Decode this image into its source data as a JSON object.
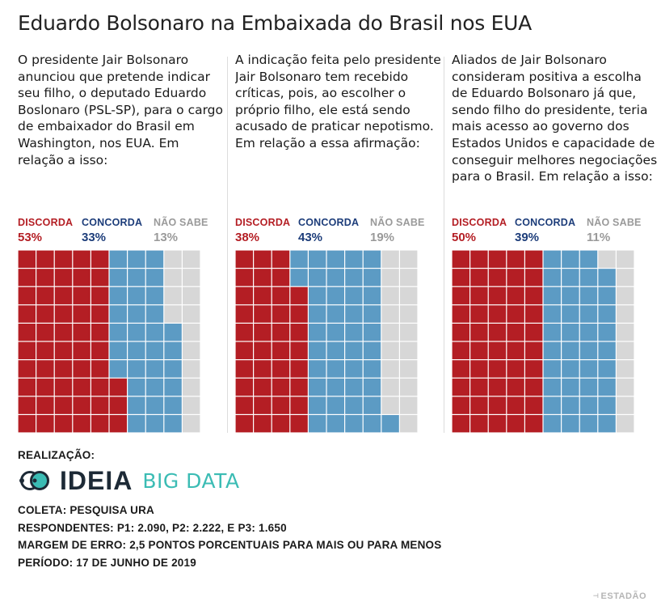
{
  "title": "Eduardo Bolsonaro na Embaixada do Brasil nos EUA",
  "colors": {
    "discorda": "#b41e24",
    "concorda": "#5c9bc4",
    "nao_sabe": "#d7d7d7",
    "discorda_text": "#b41e24",
    "concorda_text": "#1d3d7a",
    "nao_sabe_text": "#9a9a9a"
  },
  "questions": [
    "O presidente Jair Bolsonaro anunciou que pretende indicar seu filho, o deputado Eduardo Boslonaro (PSL-SP), para o cargo de embaixador do Brasil em Washington, nos EUA. Em relação a isso:",
    "A indicação feita pelo presidente Jair Bolsonaro tem recebido críticas, pois, ao escolher o próprio filho, ele está sendo acusado de praticar nepotismo. Em relação a essa afirmação:",
    "Aliados de Jair Bolsonaro consideram positiva a escolha de Eduardo Bolsonaro já que, sendo filho do presidente, teria mais acesso ao governo dos Estados Unidos e capacidade de conseguir melhores negociações para o Brasil. Em relação a isso:"
  ],
  "chart_data": [
    {
      "type": "waffle",
      "question_index": 0,
      "categories": [
        "DISCORDA",
        "CONCORDA",
        "NÃO SABE"
      ],
      "percent_labels": [
        "53%",
        "33%",
        "13%"
      ],
      "values": [
        53,
        33,
        13
      ],
      "total_cells": 100
    },
    {
      "type": "waffle",
      "question_index": 1,
      "categories": [
        "DISCORDA",
        "CONCORDA",
        "NÃO SABE"
      ],
      "percent_labels": [
        "38%",
        "43%",
        "19%"
      ],
      "values": [
        38,
        43,
        19
      ],
      "total_cells": 100
    },
    {
      "type": "waffle",
      "question_index": 2,
      "categories": [
        "DISCORDA",
        "CONCORDA",
        "NÃO SABE"
      ],
      "percent_labels": [
        "50%",
        "39%",
        "11%"
      ],
      "values": [
        50,
        39,
        11
      ],
      "total_cells": 100
    }
  ],
  "footer": {
    "realizacao_label": "REALIZAÇÃO:",
    "logo_word": "IDEIA",
    "logo_sub": "BIG DATA",
    "coleta": "COLETA: PESQUISA URA",
    "respondentes": "RESPONDENTES: P1: 2.090, P2: 2.222, E P3: 1.650",
    "margem": "MARGEM DE ERRO: 2,5 PONTOS PORCENTUAIS PARA MAIS OU PARA MENOS",
    "periodo": "PERÍODO: 17 DE JUNHO DE 2019",
    "credit": "ESTADÃO"
  }
}
